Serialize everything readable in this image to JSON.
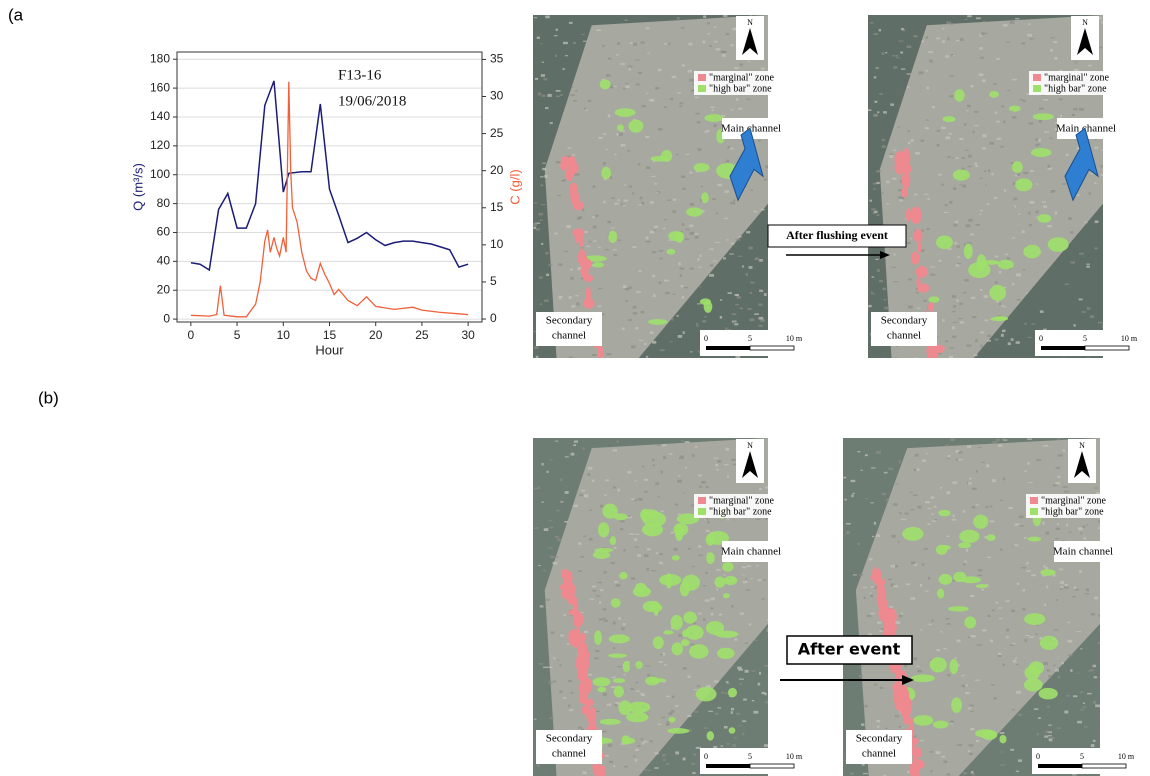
{
  "figure": {
    "panel_a": "(a",
    "panel_b": "(b)"
  },
  "chart_data": {
    "type": "line",
    "annotations": [
      "F13-16",
      "19/06/2018"
    ],
    "x_label": "Hour",
    "y_label": "Q (m³/s)",
    "y2_label": "C (g/l)",
    "xlim": [
      -1.5,
      31.5
    ],
    "xticks": [
      0,
      5,
      10,
      15,
      20,
      25,
      30
    ],
    "ylim": [
      -2,
      185
    ],
    "yticks": [
      0,
      20,
      40,
      60,
      80,
      100,
      120,
      140,
      160,
      180
    ],
    "y2lim": [
      -0.4,
      36
    ],
    "y2ticks": [
      0,
      5,
      10,
      15,
      20,
      25,
      30,
      35
    ],
    "grid": true,
    "series": [
      {
        "name": "Q",
        "color": "#1c1c78",
        "x": [
          0,
          1,
          2,
          3,
          4,
          5,
          6,
          7,
          8,
          9,
          10,
          10.6,
          12,
          13,
          14,
          15,
          16,
          17,
          18,
          19,
          20,
          21,
          22,
          23,
          24,
          25,
          26,
          27,
          28,
          29,
          30
        ],
        "values": [
          39,
          38,
          34,
          76,
          87,
          63,
          63,
          80,
          148,
          165,
          88,
          101,
          102,
          102,
          149,
          90,
          72,
          53,
          56,
          60,
          55,
          51,
          53,
          54,
          54,
          53,
          52,
          50,
          48,
          36,
          38
        ]
      },
      {
        "name": "C",
        "color": "#f0603a",
        "axis": "y2",
        "x": [
          0,
          2,
          2.8,
          3.2,
          3.6,
          5,
          6,
          7,
          7.5,
          8,
          8.3,
          8.6,
          9,
          9.3,
          9.6,
          10,
          10.3,
          10.6,
          10.8,
          11,
          11.5,
          12,
          12.5,
          13,
          13.5,
          14,
          14.5,
          15,
          15.5,
          16,
          17,
          18,
          19,
          20,
          22,
          24,
          25,
          27,
          29,
          30
        ],
        "values": [
          0.5,
          0.4,
          0.6,
          4.5,
          0.5,
          0.3,
          0.3,
          2,
          5,
          10.5,
          12,
          9,
          11,
          9.5,
          8.5,
          11,
          9,
          32,
          20,
          15,
          13,
          9,
          6.5,
          5.5,
          5.2,
          7.5,
          6,
          4.8,
          3.3,
          4,
          2.5,
          1.8,
          3,
          1.7,
          1.3,
          1.6,
          1.2,
          0.9,
          0.7,
          0.6
        ]
      }
    ]
  },
  "maps": [
    {
      "north": "N",
      "legend": [
        "\"marginal\" zone",
        "\"high bar\" zone"
      ],
      "main_channel": "Main channel",
      "secondary_channel": [
        "Secondary",
        "channel"
      ],
      "scale": [
        "0",
        "5",
        "10 m"
      ]
    },
    {
      "north": "N",
      "legend": [
        "\"marginal\" zone",
        "\"high bar\" zone"
      ],
      "main_channel": "Main channel",
      "secondary_channel": [
        "Secondary",
        "channel"
      ],
      "scale": [
        "0",
        "5",
        "10 m"
      ]
    },
    {
      "north": "N",
      "legend": [
        "\"marginal\" zone",
        "\"high bar\" zone"
      ],
      "main_channel": "Main channel",
      "secondary_channel": [
        "Secondary",
        "channel"
      ],
      "scale": [
        "0",
        "5",
        "10 m"
      ]
    },
    {
      "north": "N",
      "legend": [
        "\"marginal\" zone",
        "\"high bar\" zone"
      ],
      "main_channel": "Main channel",
      "secondary_channel": [
        "Secondary",
        "channel"
      ],
      "scale": [
        "0",
        "5",
        "10 m"
      ]
    }
  ],
  "arrows": [
    "After flushing event",
    "After event"
  ]
}
